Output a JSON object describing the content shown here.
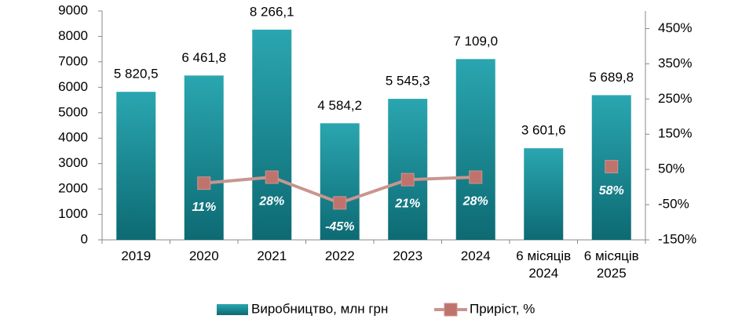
{
  "chart_data": {
    "type": "bar",
    "categories": [
      "2019",
      "2020",
      "2021",
      "2022",
      "2023",
      "2024",
      "6 місяців 2024",
      "6 місяців 2025"
    ],
    "series": [
      {
        "name": "Виробництво, млн грн",
        "type": "bar",
        "color": "#1a8d97",
        "values": [
          5820.5,
          6461.8,
          8266.1,
          4584.2,
          5545.3,
          7109.0,
          3601.6,
          5689.8
        ],
        "value_labels": [
          "5 820,5",
          "6 461,8",
          "8 266,1",
          "4 584,2",
          "5 545,3",
          "7 109,0",
          "3 601,6",
          "5 689,8"
        ]
      },
      {
        "name": "Приріст, %",
        "type": "line",
        "axis": "y2",
        "color": "#c9958f",
        "marker_color": "#c0736c",
        "values": [
          null,
          11,
          28,
          -45,
          21,
          28,
          null,
          58
        ],
        "value_labels": [
          null,
          "11%",
          "28%",
          "-45%",
          "21%",
          "28%",
          null,
          "58%"
        ]
      }
    ],
    "ylim": [
      0,
      9000
    ],
    "yticks": [
      0,
      1000,
      2000,
      3000,
      4000,
      5000,
      6000,
      7000,
      8000,
      9000
    ],
    "y2lim": [
      -150,
      500
    ],
    "y2ticks": [
      {
        "value": -150,
        "label": "-150%"
      },
      {
        "value": -50,
        "label": "-50%"
      },
      {
        "value": 50,
        "label": "50%"
      },
      {
        "value": 150,
        "label": "150%"
      },
      {
        "value": 250,
        "label": "250%"
      },
      {
        "value": 350,
        "label": "350%"
      },
      {
        "value": 450,
        "label": "450%"
      }
    ],
    "legend": "bottom",
    "grid": false
  }
}
